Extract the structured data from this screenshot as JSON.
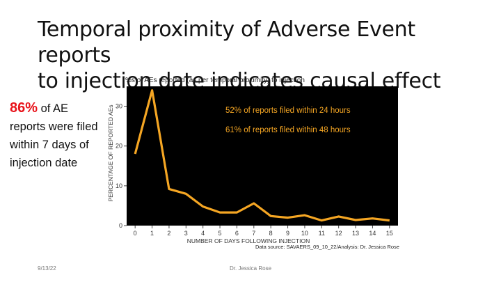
{
  "slide": {
    "title_line1": "Temporal proximity of Adverse Event reports",
    "title_line2": "to injection date indicates causal effect",
    "callout_pct": "86%",
    "callout_rest": " of AE reports were filed within 7 days of injection date",
    "footer_date": "9/13/22",
    "footer_author": "Dr. Jessica Rose"
  },
  "chart_data": {
    "type": "line",
    "title": "%s of AEs reported (as per temporal proximity) to injection",
    "xlabel": "NUMBER OF DAYS FOLLOWING INJECTION",
    "ylabel": "PERCENTAGE OF REPORTED AEs",
    "x": [
      0,
      1,
      2,
      3,
      4,
      5,
      6,
      7,
      8,
      9,
      10,
      11,
      12,
      13,
      14,
      15
    ],
    "series": [
      {
        "values": [
          18,
          34,
          9.2,
          8,
          4.8,
          3.3,
          3.3,
          5.6,
          2.4,
          2,
          2.6,
          1.3,
          2.3,
          1.4,
          1.8,
          1.3
        ]
      }
    ],
    "xlim": [
      -0.5,
      15.5
    ],
    "ylim": [
      0,
      35
    ],
    "yticks": [
      0,
      10,
      20,
      30
    ],
    "grid": false,
    "background_color": "#000000",
    "line_color": "#f5a623",
    "annotations": [
      "52% of reports filed within 24 hours",
      "61% of reports filed within 48 hours"
    ],
    "source": "Data source: SAVAERS_09_10_22/Analysis: Dr. Jessica Rose"
  }
}
